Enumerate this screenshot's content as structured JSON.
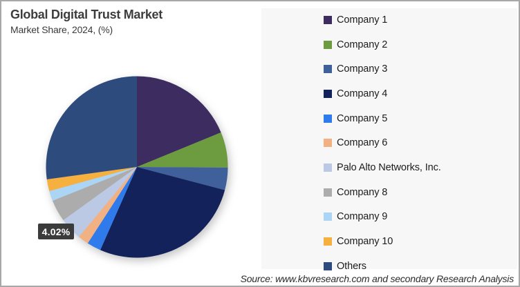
{
  "header": {
    "title": "Global Digital Trust Market",
    "subtitle": "Market Share, 2024, (%)"
  },
  "callout": {
    "label": "4.02%"
  },
  "source_note": "Source: www.kbvresearch.com and secondary Research Analysis",
  "colors": {
    "callout_bg": "#3B3B3B",
    "legend_panel_bg": "#F7F7F8",
    "frame_border": "#A8A8A8"
  },
  "chart_data": {
    "type": "pie",
    "title": "Global Digital Trust Market",
    "subtitle": "Market Share, 2024, (%)",
    "unit": "% market share",
    "start_angle_deg": 0,
    "direction": "clockwise",
    "legend_position": "right",
    "slices": [
      {
        "label": "Company 1",
        "value": 18.8,
        "color": "#3D2C60"
      },
      {
        "label": "Company 2",
        "value": 6.3,
        "color": "#6C9C3F"
      },
      {
        "label": "Company 3",
        "value": 4.0,
        "color": "#3F609B"
      },
      {
        "label": "Company 4",
        "value": 27.5,
        "color": "#13225B"
      },
      {
        "label": "Company 5",
        "value": 2.5,
        "color": "#2F7BEC"
      },
      {
        "label": "Company 6",
        "value": 1.9,
        "color": "#F2B183"
      },
      {
        "label": "Palo Alto Networks, Inc.",
        "value": 4.02,
        "color": "#BCC9E4"
      },
      {
        "label": "Company 8",
        "value": 3.9,
        "color": "#ACACAC"
      },
      {
        "label": "Company 9",
        "value": 1.8,
        "color": "#ACD4F4"
      },
      {
        "label": "Company 10",
        "value": 2.1,
        "color": "#F5B040"
      },
      {
        "label": "Others",
        "value": 27.18,
        "color": "#2D4C7D"
      }
    ],
    "annotations": [
      {
        "text": "4.02%",
        "slice": "Palo Alto Networks, Inc."
      }
    ]
  }
}
